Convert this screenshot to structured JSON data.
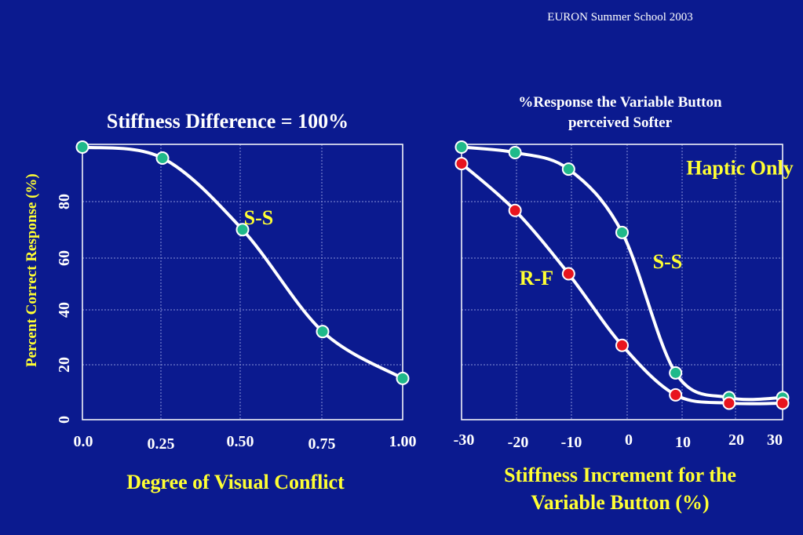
{
  "header": "EURON Summer School 2003",
  "chart_data": [
    {
      "type": "line",
      "title": "Stiffness Difference = 100%",
      "xlabel": "Degree of Visual Conflict",
      "ylabel": "Percent Correct Response (%)",
      "x_ticks": [
        "0.0",
        "0.25",
        "0.50",
        "0.75",
        "1.00"
      ],
      "y_ticks": [
        "0",
        "20",
        "40",
        "60",
        "80"
      ],
      "xlim": [
        0,
        1
      ],
      "ylim": [
        0,
        100
      ],
      "grid": true,
      "series": [
        {
          "name": "S-S",
          "x": [
            0,
            0.25,
            0.5,
            0.75,
            1.0
          ],
          "y": [
            99,
            95,
            69,
            32,
            15
          ],
          "color": "#ffffff",
          "marker_color": "#1fb98a"
        }
      ],
      "annotations": [
        {
          "text": "S-S",
          "x": 0.55,
          "y": 71
        }
      ]
    },
    {
      "type": "line",
      "title": [
        "%Response the Variable Button",
        "perceived Softer"
      ],
      "xlabel": [
        "Stiffness Increment for the",
        "Variable Button (%)"
      ],
      "x_ticks": [
        "-30",
        "-20",
        "-10",
        "0",
        "10",
        "20",
        "30"
      ],
      "xlim": [
        -30,
        30
      ],
      "ylim": [
        0,
        100
      ],
      "grid": true,
      "series": [
        {
          "name": "S-S",
          "x": [
            -30,
            -20,
            -10,
            0,
            10,
            20,
            30
          ],
          "y": [
            99,
            97,
            91,
            68,
            17,
            8,
            8
          ],
          "color": "#ffffff",
          "marker_color": "#1fb98a"
        },
        {
          "name": "R-F",
          "x": [
            -30,
            -20,
            -10,
            0,
            10,
            20,
            30
          ],
          "y": [
            93,
            76,
            53,
            27,
            9,
            6,
            6
          ],
          "color": "#ffffff",
          "marker_color": "#e8141e"
        }
      ],
      "annotations": [
        {
          "text": "Haptic Only",
          "x": 22,
          "y": 89
        },
        {
          "text": "S-S",
          "x": 8.5,
          "y": 55
        },
        {
          "text": "R-F",
          "x": -16,
          "y": 49
        }
      ]
    }
  ]
}
